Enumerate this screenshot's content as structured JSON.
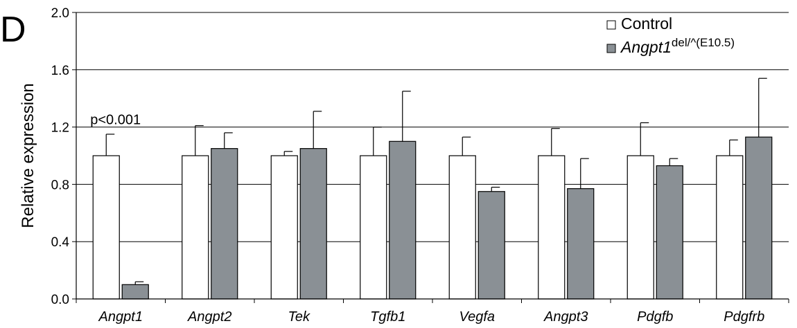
{
  "panel_label": "D",
  "chart_data": {
    "type": "bar",
    "ylabel": "Relative expression",
    "ylim": [
      0.0,
      2.0
    ],
    "yticks": [
      "0.0",
      "0.4",
      "0.8",
      "1.2",
      "1.6",
      "2.0"
    ],
    "categories": [
      "Angpt1",
      "Angpt2",
      "Tek",
      "Tgfb1",
      "Vegfa",
      "Angpt3",
      "Pdgfb",
      "Pdgfrb"
    ],
    "series": [
      {
        "name": "Control",
        "color": "#ffffff",
        "values": [
          1.0,
          1.0,
          1.0,
          1.0,
          1.0,
          1.0,
          1.0,
          1.0
        ],
        "error": [
          0.15,
          0.21,
          0.03,
          0.2,
          0.13,
          0.19,
          0.23,
          0.11
        ]
      },
      {
        "name": "Angpt1",
        "name_superscript": "del/^(E10.5)",
        "color": "#8a9095",
        "values": [
          0.1,
          1.05,
          1.05,
          1.1,
          0.75,
          0.77,
          0.93,
          1.13
        ],
        "error": [
          0.02,
          0.11,
          0.26,
          0.35,
          0.03,
          0.21,
          0.05,
          0.41
        ]
      }
    ],
    "annotations": [
      {
        "text": "p<0.001",
        "category": "Angpt1"
      }
    ],
    "grid": true,
    "legend_position": "top-right"
  }
}
